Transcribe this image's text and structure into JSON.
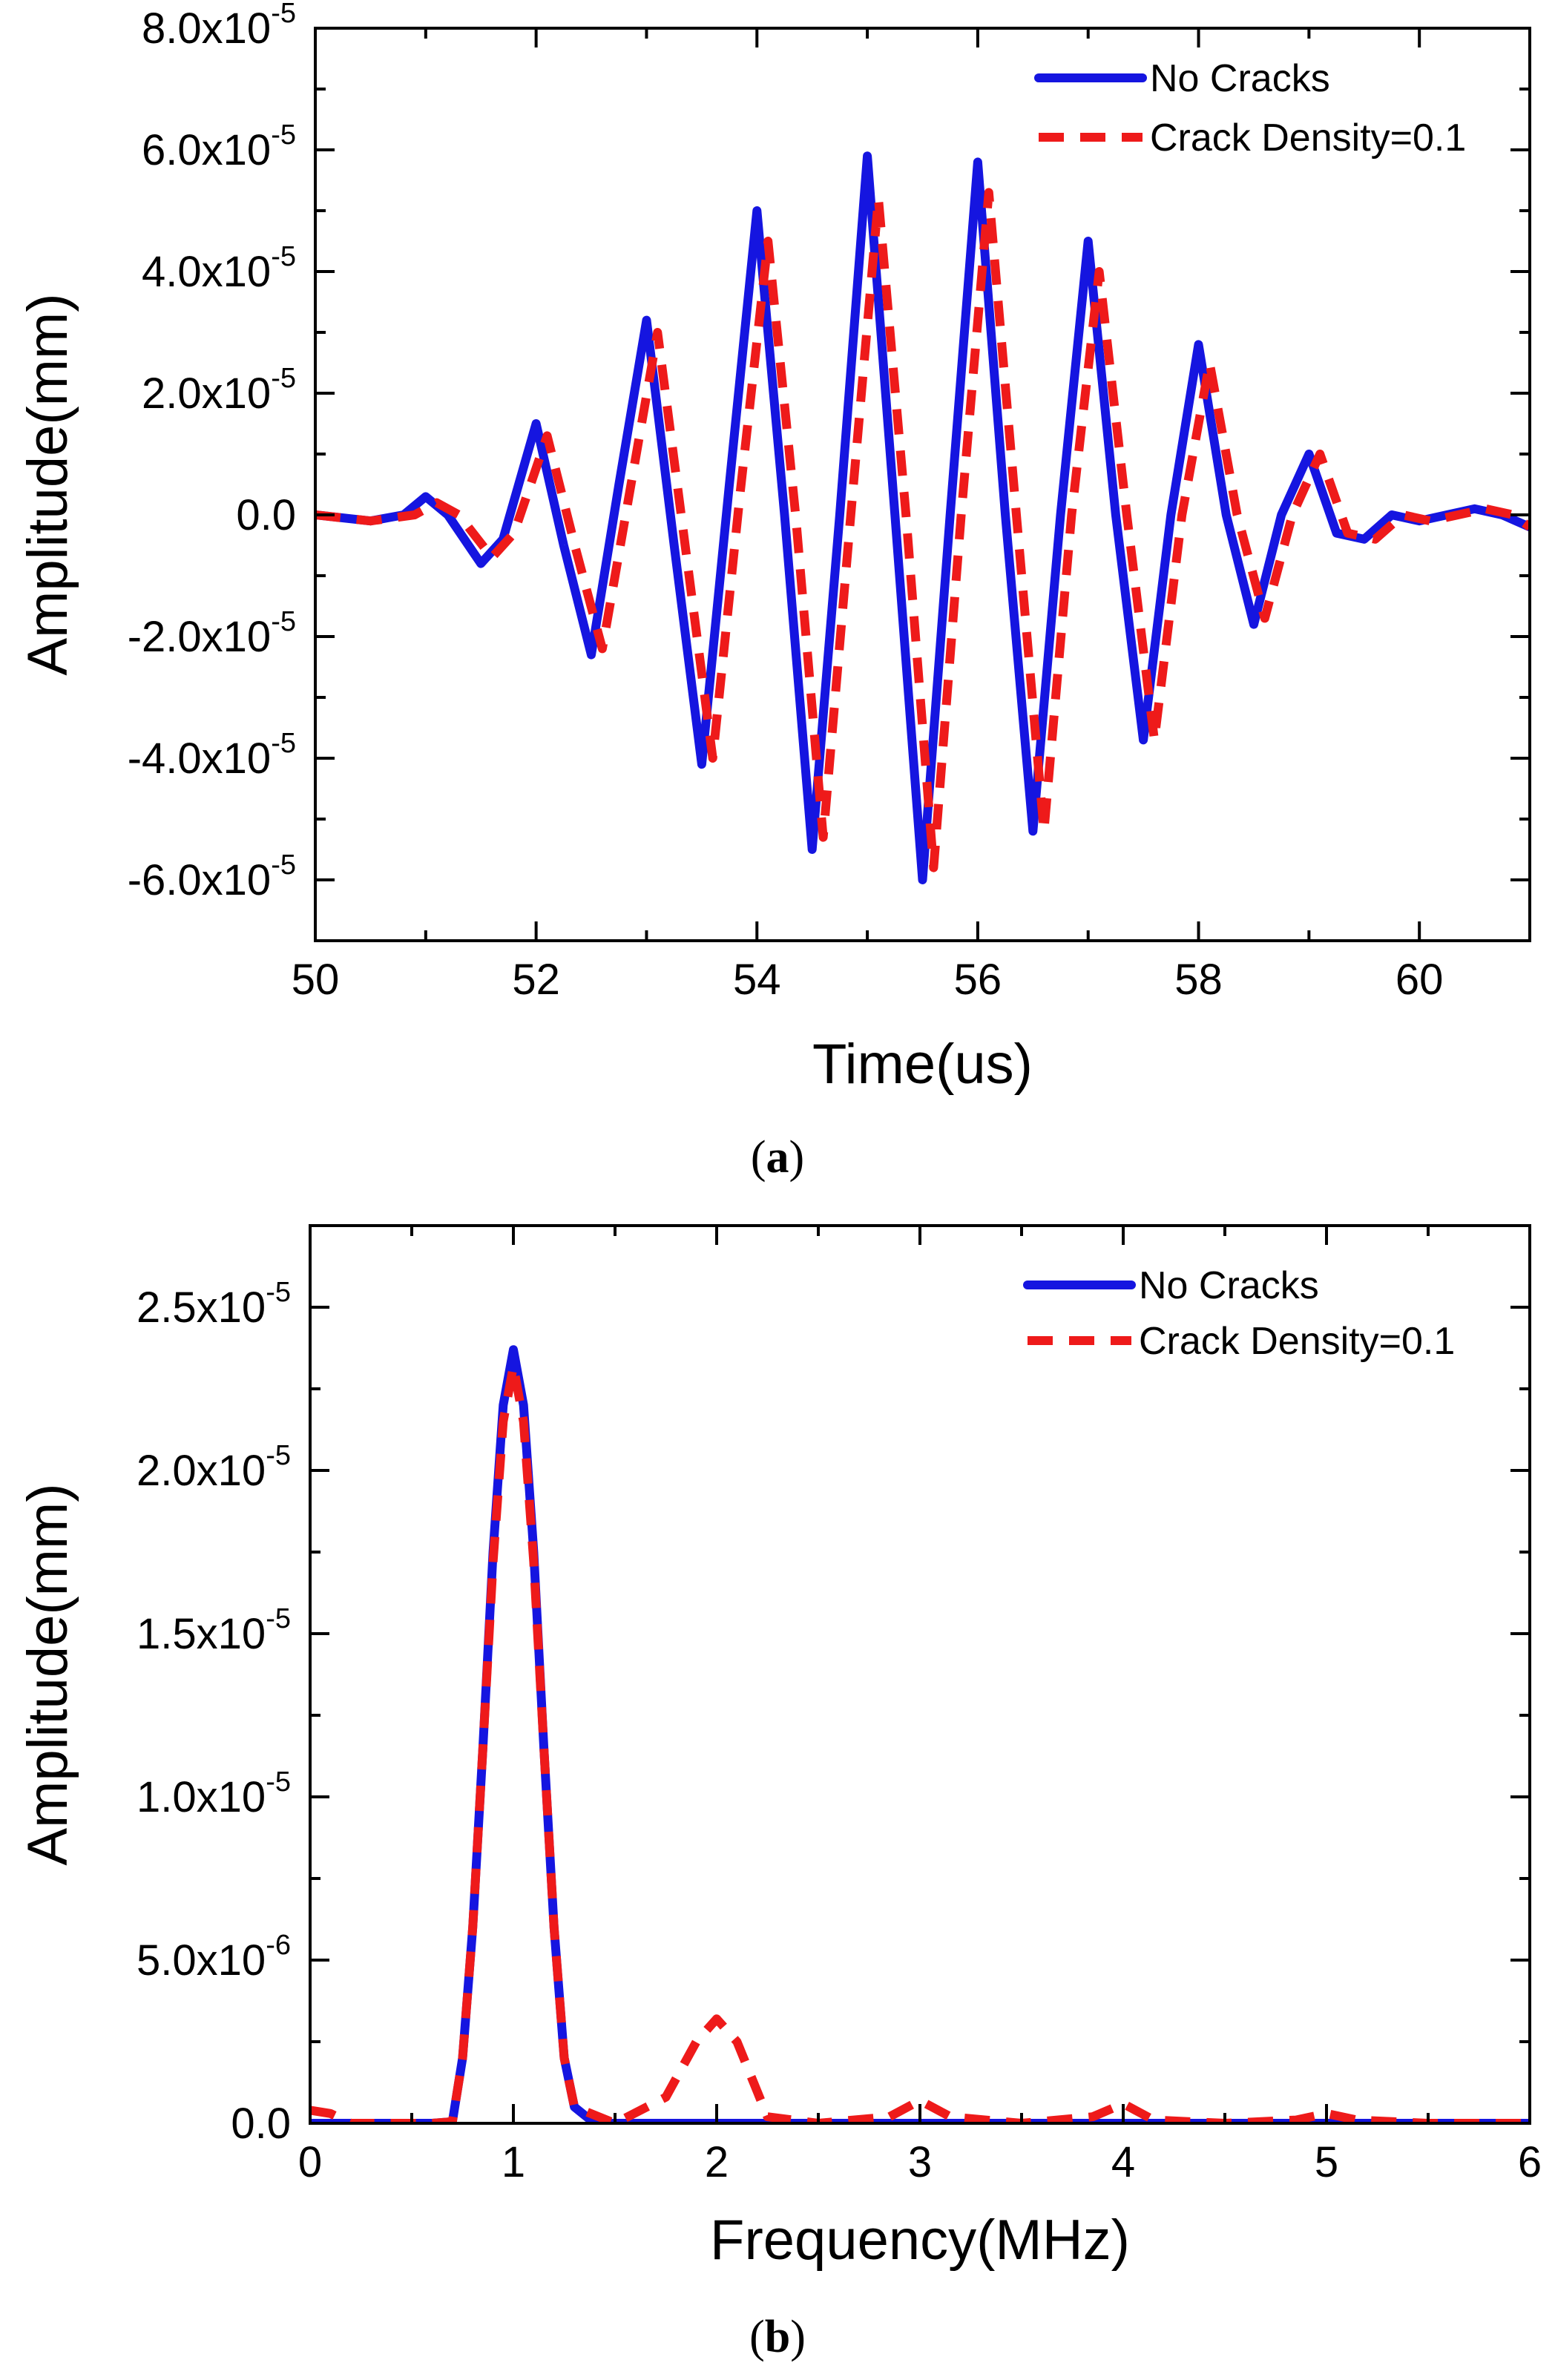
{
  "figure_captions": {
    "a": "a",
    "b": "b"
  },
  "chart_data": [
    {
      "type": "line",
      "panel": "a",
      "title": "",
      "xlabel": "Time(us)",
      "ylabel": "Amplitude(mm)",
      "xlim": [
        50,
        61
      ],
      "ylim": [
        -7e-05,
        8e-05
      ],
      "x_ticks": [
        50,
        52,
        54,
        56,
        58,
        60
      ],
      "x_tick_labels": [
        "50",
        "52",
        "54",
        "56",
        "58",
        "60"
      ],
      "y_ticks": [
        -6e-05,
        -4e-05,
        -2e-05,
        0,
        2e-05,
        4e-05,
        6e-05,
        8e-05
      ],
      "y_tick_labels": [
        {
          "mant": "-6.0x10",
          "exp": "-5"
        },
        {
          "mant": "-4.0x10",
          "exp": "-5"
        },
        {
          "mant": "-2.0x10",
          "exp": "-5"
        },
        {
          "mant": "0.0",
          "exp": ""
        },
        {
          "mant": "2.0x10",
          "exp": "-5"
        },
        {
          "mant": "4.0x10",
          "exp": "-5"
        },
        {
          "mant": "6.0x10",
          "exp": "-5"
        },
        {
          "mant": "8.0x10",
          "exp": "-5"
        }
      ],
      "legend_position": "top-right",
      "series": [
        {
          "name": "No Cracks",
          "color": "#1515e0",
          "style": "solid",
          "x": [
            50.0,
            50.5,
            50.8,
            51.0,
            51.2,
            51.5,
            51.7,
            52.0,
            52.25,
            52.5,
            52.75,
            53.0,
            53.25,
            53.5,
            53.75,
            54.0,
            54.25,
            54.5,
            54.75,
            55.0,
            55.25,
            55.5,
            55.75,
            56.0,
            56.25,
            56.5,
            56.75,
            57.0,
            57.25,
            57.5,
            57.75,
            58.0,
            58.25,
            58.5,
            58.75,
            59.0,
            59.25,
            59.5,
            59.75,
            60.0,
            60.25,
            60.5,
            60.75,
            61.0
          ],
          "y": [
            0,
            -1e-06,
            0.0,
            3e-06,
            0.0,
            -8e-06,
            -4e-06,
            1.5e-05,
            -5e-06,
            -2.3e-05,
            5e-06,
            3.2e-05,
            -5e-06,
            -4.1e-05,
            5e-06,
            5e-05,
            0.0,
            -5.5e-05,
            0.0,
            5.9e-05,
            0.0,
            -6e-05,
            0.0,
            5.8e-05,
            0.0,
            -5.2e-05,
            0.0,
            4.5e-05,
            0.0,
            -3.7e-05,
            0.0,
            2.8e-05,
            0.0,
            -1.8e-05,
            0.0,
            1e-05,
            -3e-06,
            -4e-06,
            0.0,
            -1e-06,
            0.0,
            1e-06,
            0.0,
            -2e-06
          ]
        },
        {
          "name": "Crack Density=0.1",
          "color": "#ee1a1a",
          "style": "dashed",
          "x": [
            50.0,
            50.5,
            50.9,
            51.1,
            51.3,
            51.6,
            51.8,
            52.1,
            52.35,
            52.6,
            52.85,
            53.1,
            53.35,
            53.6,
            53.85,
            54.1,
            54.35,
            54.6,
            54.85,
            55.1,
            55.35,
            55.6,
            55.85,
            56.1,
            56.35,
            56.6,
            56.85,
            57.1,
            57.35,
            57.6,
            57.85,
            58.1,
            58.35,
            58.6,
            58.85,
            59.1,
            59.35,
            59.6,
            59.85,
            60.1,
            60.35,
            60.6,
            60.85,
            61.0
          ],
          "y": [
            0,
            -1e-06,
            0.0,
            2e-06,
            0.0,
            -7e-06,
            -3e-06,
            1.3e-05,
            -5e-06,
            -2.2e-05,
            4e-06,
            3e-05,
            -5e-06,
            -4e-05,
            4e-06,
            4.5e-05,
            0.0,
            -5.3e-05,
            0.0,
            5.2e-05,
            0.0,
            -5.8e-05,
            0.0,
            5.3e-05,
            0.0,
            -5.2e-05,
            0.0,
            4e-05,
            0.0,
            -3.7e-05,
            0.0,
            2.5e-05,
            0.0,
            -1.7e-05,
            0.0,
            1e-05,
            -3e-06,
            -4e-06,
            0.0,
            -1e-06,
            0.0,
            1e-06,
            0.0,
            -2e-06
          ]
        }
      ]
    },
    {
      "type": "line",
      "panel": "b",
      "title": "",
      "xlabel": "Frequency(MHz)",
      "ylabel": "Amplitude(mm)",
      "xlim": [
        0,
        6
      ],
      "ylim": [
        0,
        2.75e-05
      ],
      "x_ticks": [
        0,
        1,
        2,
        3,
        4,
        5,
        6
      ],
      "x_tick_labels": [
        "0",
        "1",
        "2",
        "3",
        "4",
        "5",
        "6"
      ],
      "y_ticks": [
        0,
        5e-06,
        1e-05,
        1.5e-05,
        2e-05,
        2.5e-05
      ],
      "y_tick_labels": [
        {
          "mant": "0.0",
          "exp": ""
        },
        {
          "mant": "5.0x10",
          "exp": "-6"
        },
        {
          "mant": "1.0x10",
          "exp": "-5"
        },
        {
          "mant": "1.5x10",
          "exp": "-5"
        },
        {
          "mant": "2.0x10",
          "exp": "-5"
        },
        {
          "mant": "2.5x10",
          "exp": "-5"
        }
      ],
      "legend_position": "top-right",
      "series": [
        {
          "name": "No Cracks",
          "color": "#1515e0",
          "style": "solid",
          "x": [
            0.0,
            0.3,
            0.6,
            0.7,
            0.75,
            0.8,
            0.85,
            0.9,
            0.95,
            1.0,
            1.05,
            1.1,
            1.15,
            1.2,
            1.25,
            1.3,
            1.4,
            2.0,
            3.0,
            4.0,
            5.0,
            6.0
          ],
          "y": [
            0,
            0,
            0,
            5e-08,
            2e-06,
            6e-06,
            1.15e-05,
            1.75e-05,
            2.2e-05,
            2.37e-05,
            2.2e-05,
            1.75e-05,
            1.15e-05,
            6e-06,
            2e-06,
            5e-07,
            0,
            0,
            0,
            0,
            0,
            0
          ]
        },
        {
          "name": "Crack Density=0.1",
          "color": "#ee1a1a",
          "style": "dashed",
          "x": [
            0.0,
            0.1,
            0.2,
            0.6,
            0.7,
            0.75,
            0.8,
            0.85,
            0.9,
            0.95,
            1.0,
            1.05,
            1.1,
            1.15,
            1.2,
            1.25,
            1.3,
            1.5,
            1.75,
            1.9,
            2.0,
            2.1,
            2.25,
            2.5,
            2.85,
            3.0,
            3.15,
            3.5,
            3.85,
            4.0,
            4.15,
            4.5,
            4.85,
            5.0,
            5.15,
            5.5,
            6.0
          ],
          "y": [
            4e-07,
            3e-07,
            0,
            0,
            5e-08,
            2e-06,
            6e-06,
            1.15e-05,
            1.72e-05,
            2.15e-05,
            2.32e-05,
            2.15e-05,
            1.72e-05,
            1.15e-05,
            6e-06,
            2e-06,
            5e-07,
            0,
            8e-07,
            2.5e-06,
            3.2e-06,
            2.5e-06,
            2e-07,
            0,
            2e-07,
            7e-07,
            2e-07,
            0,
            2e-07,
            6e-07,
            1e-07,
            0,
            1e-07,
            3e-07,
            1e-07,
            0,
            0
          ]
        }
      ]
    }
  ]
}
